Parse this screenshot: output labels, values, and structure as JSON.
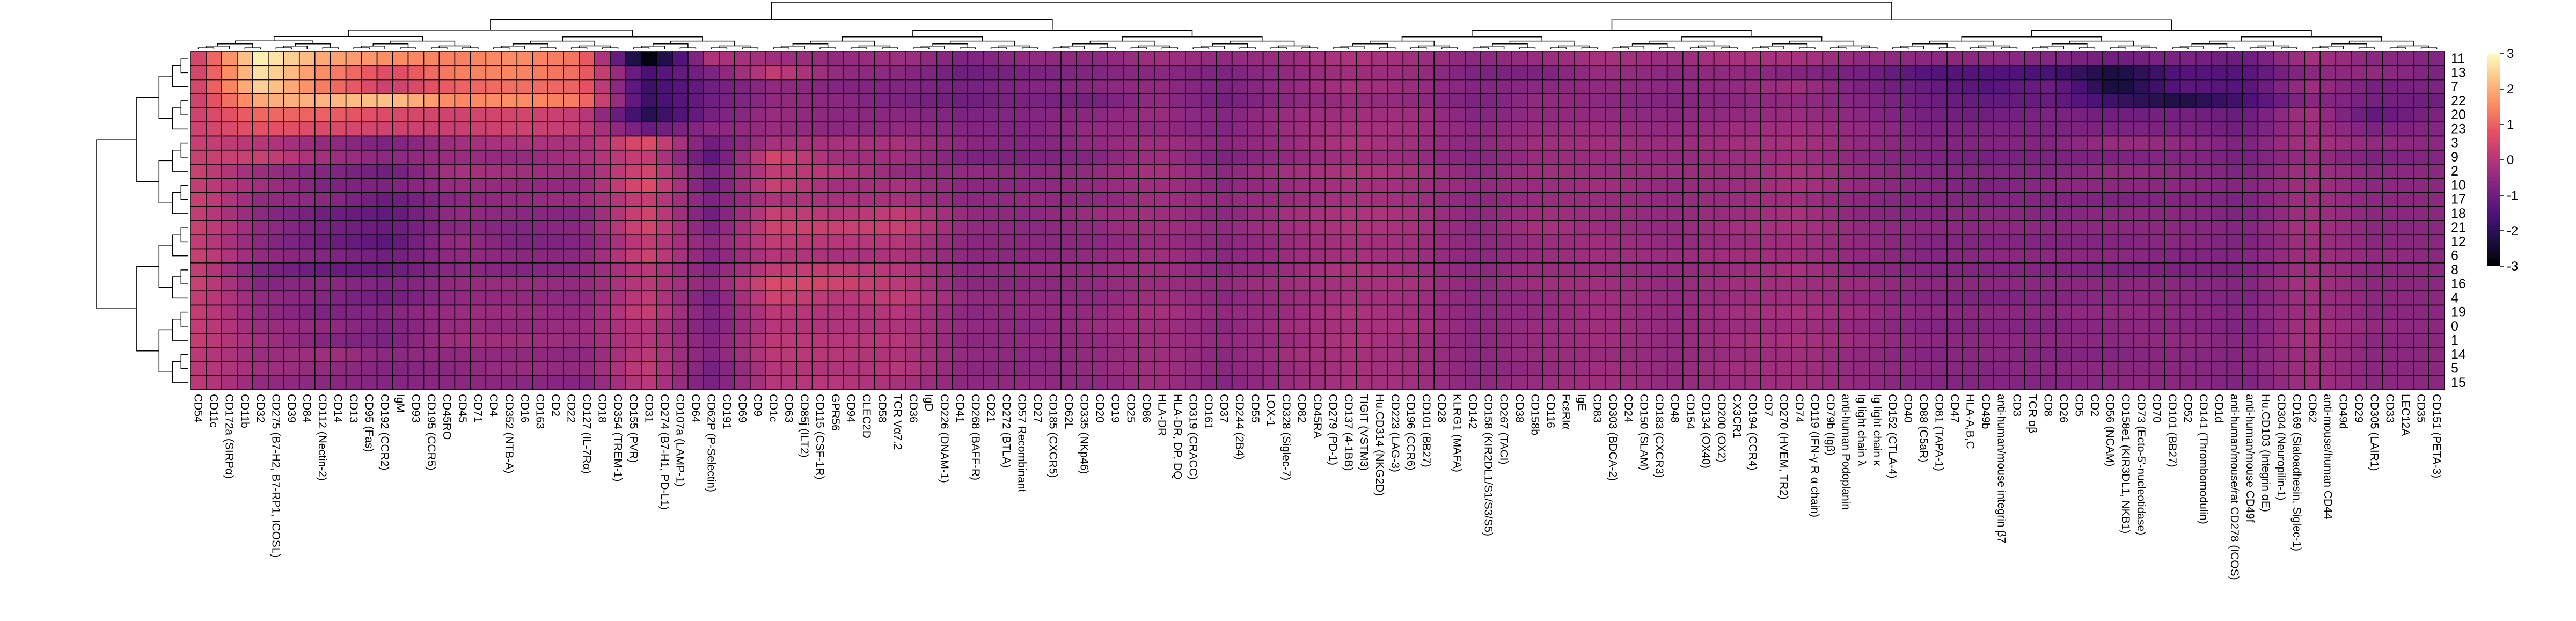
{
  "chart_data": {
    "type": "heatmap",
    "title": "",
    "xlabel": "",
    "ylabel": "",
    "colormap": "magma",
    "color_scale": {
      "min": -3,
      "max": 3,
      "ticks": [
        3,
        2,
        1,
        0,
        -1,
        -2,
        -3
      ]
    },
    "rows": [
      "11",
      "13",
      "7",
      "22",
      "20",
      "23",
      "3",
      "9",
      "2",
      "10",
      "17",
      "18",
      "21",
      "12",
      "6",
      "8",
      "16",
      "4",
      "19",
      "0",
      "1",
      "14",
      "5",
      "15"
    ],
    "columns": [
      "CD54",
      "CD11c",
      "CD172a (SIRPα)",
      "CD11b",
      "CD32",
      "CD275 (B7-H2, B7-RP1, ICOSL)",
      "CD39",
      "CD84",
      "CD112 (Nectin-2)",
      "CD14",
      "CD13",
      "CD95 (Fas)",
      "CD192 (CCR2)",
      "IgM",
      "CD93",
      "CD195 (CCR5)",
      "CD45RO",
      "CD45",
      "CD71",
      "CD4",
      "CD352 (NTB-A)",
      "CD16",
      "CD163",
      "CD2",
      "CD22",
      "CD127 (IL-7Rα)",
      "CD18",
      "CD354 (TREM-1)",
      "CD155 (PVR)",
      "CD31",
      "CD274 (B7-H1, PD-L1)",
      "CD107a (LAMP-1)",
      "CD64",
      "CD62P (P-Selectin)",
      "CD191",
      "CD69",
      "CD9",
      "CD1c",
      "CD63",
      "CD85j (ILT2)",
      "CD115 (CSF-1R)",
      "GPR56",
      "CD94",
      "CLEC2D",
      "CD58",
      "TCR Vα7.2",
      "CD36",
      "IgD",
      "CD226 (DNAM-1)",
      "CD41",
      "CD268 (BAFF-R)",
      "CD21",
      "CD272 (BTLA)",
      "CD57 Recombinant",
      "CD27",
      "CD185 (CXCR5)",
      "CD62L",
      "CD335 (NKp46)",
      "CD20",
      "CD19",
      "CD25",
      "CD86",
      "HLA-DR",
      "HLA-DR, DP, DQ",
      "CD319 (CRACC)",
      "CD161",
      "CD37",
      "CD244 (2B4)",
      "CD55",
      "LOX-1",
      "CD328 (Siglec-7)",
      "CD82",
      "CD45RA",
      "CD279 (PD-1)",
      "CD137 (4-1BB)",
      "TIGIT (VSTM3)",
      "Hu.CD314 (NKG2D)",
      "CD223 (LAG-3)",
      "CD196 (CCR6)",
      "CD101 (BB27)",
      "CD28",
      "KLRG1 (MAFA)",
      "CD142",
      "CD158 (KIR2DL1/S1/S3/S5)",
      "CD267 (TACI)",
      "CD38",
      "CD158b",
      "CD116",
      "FcεRIα",
      "IgE",
      "CD83",
      "CD303 (BDCA-2)",
      "CD24",
      "CD150 (SLAM)",
      "CD183 (CXCR3)",
      "CD48",
      "CD154",
      "CD134 (OX40)",
      "CD200 (OX2)",
      "CX3CR1",
      "CD194 (CCR4)",
      "CD7",
      "CD270 (HVEM, TR2)",
      "CD74",
      "CD119 (IFN-γ R α chain)",
      "CD79b (Igβ)",
      "anti-human Podoplanin",
      "Ig light chain λ",
      "Ig light chain κ",
      "CD152 (CTLA-4)",
      "CD40",
      "CD88 (C5aR)",
      "CD81 (TAPA-1)",
      "CD47",
      "HLA-A,B,C",
      "CD49b",
      "anti-human/mouse integrin β7",
      "CD3",
      "TCR αβ",
      "CD8",
      "CD26",
      "CD5",
      "CD2",
      "CD56 (NCAM)",
      "CD158e1 (KIR3DL1, NKB1)",
      "CD73 (Ecto-5'-nucleotidase)",
      "CD70",
      "CD101 (BB27)",
      "CD52",
      "CD141 (Thrombomodulin)",
      "CD1d",
      "anti-human/mouse/rat CD278 (ICOS)",
      "anti-human/mouse CD49f",
      "Hu.CD103 (Integrin αE)",
      "CD304 (Neuropilin-1)",
      "CD169 (Sialoadhesin, Siglec-1)",
      "CD62",
      "anti-mouse/human CD44",
      "CD49d",
      "CD29",
      "CD305 (LAIR1)",
      "CD33",
      "LEC12A",
      "CD35",
      "CD151 (PETA-3)"
    ],
    "anchors": [
      [
        0.5,
        0.5,
        0.5,
        0.4,
        0.4,
        0.4,
        0.3,
        0.3,
        0.3,
        0.2,
        0.3,
        0.2,
        0.3,
        0.2,
        0.3,
        0.2,
        0.3,
        0.2,
        0.2,
        0.2,
        0.2,
        0.1,
        0.1,
        0.1
      ],
      [
        2.9,
        2.7,
        2.5,
        2.0,
        1.1,
        0.8,
        0.0,
        0.3,
        -0.4,
        -0.3,
        -0.5,
        -0.6,
        -0.5,
        -0.6,
        -0.5,
        -0.8,
        -0.7,
        -0.5,
        -0.5,
        -0.4,
        -0.3,
        -0.4,
        -0.3,
        -0.5
      ],
      [
        1.9,
        1.5,
        1.3,
        2.1,
        1.0,
        0.6,
        -0.5,
        -0.3,
        -0.7,
        -0.8,
        -0.6,
        -1.0,
        -0.9,
        -1.0,
        -0.7,
        -1.1,
        -0.6,
        -0.7,
        -0.8,
        -0.5,
        -0.7,
        -0.3,
        -0.5,
        -0.6
      ],
      [
        1.6,
        0.6,
        0.3,
        2.3,
        0.6,
        0.4,
        -0.8,
        -0.6,
        -1.0,
        -0.8,
        -1.1,
        -1.2,
        -1.1,
        -1.3,
        -1.0,
        -1.1,
        -0.8,
        -1.0,
        -0.7,
        -0.8,
        -0.8,
        -0.6,
        -0.7,
        -0.7
      ],
      [
        1.4,
        1.4,
        1.0,
        1.5,
        0.4,
        0.3,
        -0.3,
        -0.4,
        -0.2,
        -0.4,
        -0.6,
        -0.5,
        -0.6,
        -0.4,
        -0.5,
        -0.6,
        -0.5,
        -0.5,
        -0.4,
        -0.4,
        -0.3,
        -0.5,
        -0.6,
        -0.6
      ],
      [
        1.6,
        1.5,
        1.2,
        1.6,
        0.5,
        0.4,
        -0.1,
        -0.5,
        -0.3,
        -0.5,
        -0.5,
        -0.6,
        -0.7,
        -0.8,
        -0.6,
        -0.7,
        -0.4,
        -0.5,
        -0.4,
        -0.5,
        -0.3,
        -0.5,
        -0.4,
        -0.6
      ],
      [
        1.2,
        1.1,
        1.0,
        1.3,
        0.2,
        0.2,
        -0.2,
        -0.2,
        -0.4,
        -0.5,
        -0.4,
        -0.7,
        -0.6,
        -0.7,
        -0.6,
        -0.6,
        -0.5,
        -0.6,
        -0.5,
        -0.4,
        -0.4,
        -0.6,
        -0.5,
        -0.7
      ],
      [
        -3.0,
        -1.6,
        -1.8,
        -1.8,
        -2.1,
        -1.1,
        0.7,
        0.3,
        0.5,
        0.7,
        0.3,
        0.5,
        0.5,
        0.2,
        0.4,
        0.1,
        0.1,
        0.2,
        0.3,
        0.0,
        0.0,
        0.1,
        0.2,
        0.1
      ],
      [
        -0.1,
        -0.8,
        -1.0,
        -1.0,
        -0.9,
        -0.6,
        -1.0,
        -1.3,
        -0.9,
        -1.0,
        -0.8,
        -1.0,
        -0.8,
        -0.6,
        -0.7,
        -0.7,
        -0.6,
        -0.9,
        -0.8,
        -0.8,
        -0.7,
        -0.7,
        -0.9,
        -0.9
      ],
      [
        -0.3,
        0.2,
        -0.5,
        -0.5,
        -0.4,
        -0.4,
        -0.2,
        0.5,
        0.2,
        0.3,
        -0.1,
        0.3,
        0.4,
        0.2,
        0.0,
        0.2,
        0.6,
        0.4,
        0.1,
        0.0,
        0.1,
        0.1,
        0.0,
        0.0
      ],
      [
        -0.5,
        -0.5,
        -0.7,
        -0.6,
        -0.6,
        -0.6,
        -0.2,
        -0.3,
        0.0,
        -0.3,
        -0.2,
        0.0,
        0.3,
        0.0,
        -0.2,
        0.2,
        0.4,
        0.0,
        -0.1,
        -0.1,
        0.0,
        0.0,
        -0.1,
        0.0
      ],
      [
        -0.3,
        -0.6,
        -0.7,
        -0.8,
        -0.6,
        -0.5,
        -0.2,
        -0.3,
        -0.5,
        -0.2,
        -0.2,
        0.2,
        0.3,
        0.0,
        -0.1,
        0.0,
        0.1,
        0.2,
        0.0,
        -0.1,
        0.0,
        -0.1,
        0.0,
        -0.2
      ],
      [
        -0.8,
        -1.0,
        -0.9,
        -1.0,
        -0.8,
        -0.7,
        -0.6,
        -0.8,
        -0.5,
        -0.6,
        -0.6,
        -0.5,
        -0.5,
        -0.6,
        -0.6,
        -0.6,
        -0.6,
        -0.5,
        -0.6,
        -0.5,
        -0.6,
        -0.5,
        -0.6,
        -0.6
      ],
      [
        -0.5,
        -0.8,
        -0.7,
        -0.8,
        -0.7,
        -0.7,
        -0.7,
        -0.8,
        -0.6,
        -0.6,
        -0.5,
        -0.6,
        -0.6,
        -0.6,
        -0.6,
        -0.5,
        -0.6,
        -0.5,
        -0.5,
        -0.6,
        -0.5,
        -0.6,
        -0.6,
        -0.5
      ],
      [
        -0.6,
        -0.7,
        -0.6,
        -0.9,
        -0.6,
        -0.5,
        -0.5,
        -0.7,
        -0.5,
        -0.5,
        -0.6,
        -0.4,
        -0.5,
        -0.6,
        -0.5,
        -0.5,
        -0.5,
        -0.6,
        -0.5,
        -0.4,
        -0.5,
        -0.5,
        -0.5,
        -0.6
      ],
      [
        -0.3,
        -0.6,
        -0.5,
        -0.5,
        -0.4,
        -0.5,
        -0.3,
        -0.3,
        -0.2,
        -0.3,
        -0.3,
        -0.3,
        -0.3,
        -0.4,
        -0.3,
        -0.3,
        -0.4,
        -0.3,
        -0.2,
        -0.3,
        -0.3,
        -0.3,
        -0.3,
        -0.3
      ],
      [
        -0.5,
        -0.8,
        -0.8,
        -0.9,
        -0.7,
        -0.7,
        -0.6,
        -0.8,
        -0.6,
        -0.6,
        -0.5,
        -0.6,
        -0.5,
        -0.6,
        -0.6,
        -0.6,
        -0.5,
        -0.6,
        -0.5,
        -0.6,
        -0.5,
        -0.6,
        -0.6,
        -0.7
      ],
      [
        -0.4,
        -0.5,
        -0.5,
        -0.6,
        -0.4,
        -0.4,
        -0.4,
        -0.5,
        -0.3,
        -0.4,
        -0.4,
        -0.3,
        -0.3,
        -0.4,
        -0.4,
        -0.4,
        -0.3,
        -0.4,
        -0.4,
        -0.3,
        -0.4,
        -0.3,
        -0.4,
        -0.4
      ],
      [
        -0.1,
        -0.3,
        -0.2,
        -0.4,
        -0.3,
        -0.2,
        -0.1,
        -0.3,
        -0.1,
        -0.2,
        -0.2,
        -0.1,
        -0.1,
        -0.2,
        -0.2,
        -0.1,
        -0.2,
        -0.2,
        -0.1,
        -0.2,
        -0.1,
        -0.2,
        -0.2,
        -0.2
      ],
      [
        -0.3,
        -0.4,
        -0.4,
        -0.5,
        -0.3,
        -0.3,
        -0.3,
        -0.4,
        -0.2,
        -0.3,
        -0.3,
        -0.2,
        -0.2,
        -0.3,
        -0.3,
        -0.3,
        -0.2,
        -0.3,
        -0.3,
        -0.2,
        -0.3,
        -0.3,
        -0.3,
        -0.3
      ],
      [
        -0.6,
        -0.8,
        -0.7,
        -0.8,
        -0.7,
        -0.6,
        -0.6,
        -0.7,
        -0.6,
        -0.5,
        -0.6,
        -0.6,
        -0.6,
        -0.6,
        -0.6,
        -0.6,
        -0.6,
        -0.6,
        -0.6,
        -0.6,
        -0.6,
        -0.6,
        -0.6,
        -0.6
      ],
      [
        -0.4,
        -0.8,
        -0.6,
        -0.5,
        -0.5,
        -0.4,
        -0.3,
        -0.4,
        -0.3,
        -0.4,
        -0.4,
        -0.3,
        -0.2,
        -0.4,
        -0.4,
        -0.4,
        -0.3,
        -0.5,
        -0.5,
        -0.4,
        -0.4,
        -0.4,
        -0.5,
        -0.4
      ],
      [
        -0.2,
        -0.4,
        -0.5,
        -0.6,
        -0.5,
        -0.4,
        -0.3,
        -0.4,
        -0.4,
        -0.3,
        -0.4,
        -0.4,
        -0.4,
        -0.3,
        -0.3,
        -0.4,
        -0.3,
        -0.3,
        -0.3,
        -0.3,
        -0.3,
        -0.4,
        -0.3,
        -0.3
      ],
      [
        -0.4,
        -0.6,
        -0.6,
        -0.7,
        -0.6,
        -0.5,
        -0.4,
        -0.5,
        -0.4,
        -0.5,
        -0.5,
        -0.5,
        -0.5,
        -0.5,
        -0.4,
        -0.5,
        -0.5,
        -0.5,
        -0.5,
        -0.5,
        -0.5,
        -0.5,
        -0.5,
        -0.5
      ],
      [
        -0.2,
        -0.5,
        -0.5,
        -0.6,
        -0.5,
        -0.4,
        -0.3,
        -0.4,
        -0.4,
        -0.4,
        -0.4,
        -0.4,
        -0.3,
        -0.4,
        -0.3,
        -0.4,
        -0.3,
        -0.4,
        -0.3,
        -0.4,
        -0.3,
        -0.4,
        -0.3,
        -0.4
      ],
      [
        -0.2,
        -0.7,
        -0.3,
        -0.5,
        -0.4,
        -0.3,
        -0.2,
        -0.3,
        -0.2,
        -0.2,
        -0.3,
        -0.2,
        -0.2,
        -0.3,
        -0.3,
        -0.2,
        -0.3,
        -0.3,
        -0.2,
        -0.3,
        -0.2,
        -0.3,
        -0.3,
        -0.3
      ],
      [
        -0.5,
        -0.9,
        -0.8,
        -0.7,
        -0.6,
        -0.5,
        -0.5,
        -0.6,
        -0.5,
        -0.5,
        -0.6,
        -0.6,
        -0.5,
        -0.5,
        -0.5,
        -0.6,
        -0.4,
        -0.5,
        -0.4,
        -0.5,
        -0.4,
        -0.5,
        -0.5,
        -0.5
      ],
      [
        -0.6,
        -1.4,
        -1.1,
        -1.0,
        -0.9,
        -0.8,
        -0.7,
        -0.8,
        -0.7,
        -0.7,
        -0.7,
        -0.7,
        -0.6,
        -0.7,
        -0.7,
        -0.7,
        -0.6,
        -0.7,
        -0.6,
        -0.7,
        -0.6,
        -0.7,
        -0.6,
        -0.7
      ],
      [
        -0.6,
        -1.4,
        -1.4,
        -1.2,
        -1.0,
        -0.8,
        -0.7,
        -0.9,
        -0.7,
        -0.8,
        -0.7,
        -0.6,
        -0.6,
        -0.7,
        -0.6,
        -0.7,
        -0.6,
        -0.8,
        -0.6,
        -0.7,
        -0.6,
        -0.6,
        -0.7,
        -0.7
      ],
      [
        -0.7,
        -1.6,
        -1.0,
        -1.1,
        -0.8,
        -0.8,
        -0.7,
        -0.8,
        -0.7,
        -0.6,
        -0.7,
        -0.7,
        -0.6,
        -0.7,
        -0.6,
        -0.7,
        -0.6,
        -0.7,
        -0.6,
        -0.7,
        -0.6,
        -0.7,
        -0.6,
        -0.7
      ],
      [
        -1.0,
        -2.3,
        -2.4,
        -1.8,
        -1.0,
        -0.8,
        -0.4,
        -0.8,
        -0.5,
        -0.6,
        -0.8,
        -0.6,
        -0.6,
        -0.7,
        -0.6,
        -0.8,
        -0.6,
        -0.6,
        -0.5,
        -0.6,
        -0.6,
        -0.7,
        -0.6,
        -0.6
      ],
      [
        -0.8,
        -1.4,
        -1.3,
        -2.2,
        -0.9,
        -0.8,
        -0.5,
        -0.7,
        -0.6,
        -0.6,
        -0.7,
        -0.6,
        -0.6,
        -0.6,
        -0.7,
        -0.8,
        -0.6,
        -0.6,
        -0.6,
        -0.6,
        -0.5,
        -0.6,
        -0.6,
        -0.6
      ],
      [
        -1.1,
        -1.4,
        -1.4,
        -1.6,
        -1.1,
        -1.0,
        -0.8,
        -0.9,
        -0.8,
        -0.7,
        -0.8,
        -0.8,
        -0.7,
        -0.8,
        -0.7,
        -0.8,
        -0.7,
        -0.8,
        -0.7,
        -0.8,
        -0.7,
        -0.7,
        -0.7,
        -0.8
      ],
      [
        -0.2,
        -0.6,
        -0.3,
        -0.6,
        -0.2,
        -0.3,
        -0.2,
        -0.4,
        -0.3,
        -0.3,
        -0.3,
        -0.3,
        -0.2,
        -0.3,
        -0.3,
        -0.3,
        -0.2,
        -0.3,
        -0.3,
        -0.2,
        -0.2,
        -0.3,
        -0.3,
        -0.3
      ],
      [
        -0.6,
        -0.5,
        -0.9,
        -0.9,
        -1.2,
        -0.8,
        -0.5,
        -0.8,
        -0.6,
        -0.6,
        -0.6,
        -0.6,
        -0.6,
        -0.6,
        -0.5,
        -0.6,
        -0.6,
        -0.6,
        -0.6,
        -0.5,
        -0.6,
        -0.6,
        -0.6,
        -0.6
      ],
      [
        -0.7,
        -0.8,
        -0.8,
        -1.0,
        -0.8,
        -0.7,
        -0.6,
        -0.7,
        -0.6,
        -0.6,
        -0.6,
        -0.6,
        -0.6,
        -0.6,
        -0.6,
        -0.6,
        -0.6,
        -0.6,
        -0.6,
        -0.6,
        -0.6,
        -0.6,
        -0.6,
        -0.6
      ]
    ]
  }
}
